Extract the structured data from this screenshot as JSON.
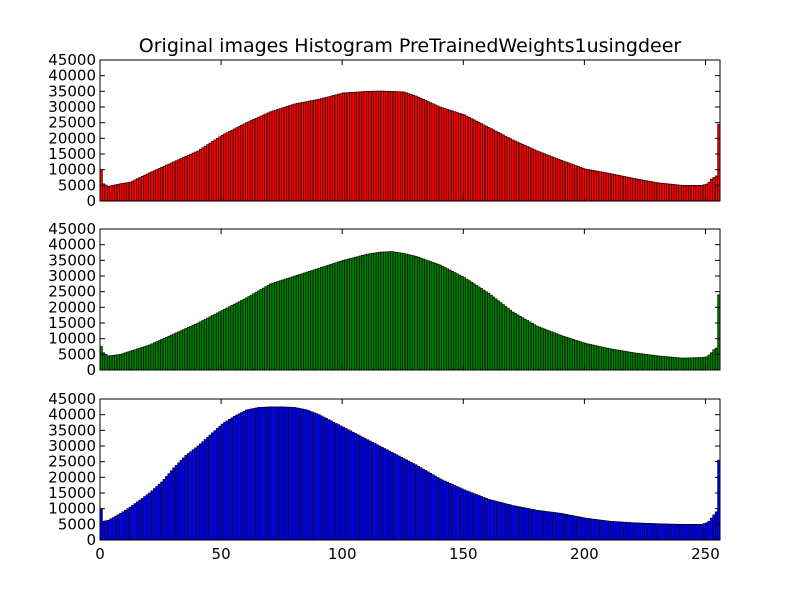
{
  "chart_data": {
    "type": "bar",
    "title": "Original images Histogram PreTrainedWeights1usingdeer",
    "layout": "3 stacked subplots sharing the x axis",
    "xlim": [
      0,
      256
    ],
    "ylim": [
      0,
      45000
    ],
    "xticks": [
      0,
      50,
      100,
      150,
      200,
      250
    ],
    "yticks": [
      0,
      5000,
      10000,
      15000,
      20000,
      25000,
      30000,
      35000,
      40000,
      45000
    ],
    "bin_width": 1,
    "grid": false,
    "legend": "none",
    "series": [
      {
        "color": "#ff0000",
        "x": [
          0,
          1,
          3,
          8,
          12,
          20,
          30,
          40,
          50,
          60,
          70,
          80,
          90,
          100,
          110,
          115,
          120,
          125,
          130,
          140,
          150,
          160,
          170,
          180,
          190,
          200,
          210,
          220,
          230,
          240,
          248,
          250,
          251,
          252,
          253,
          254,
          255
        ],
        "values": [
          10000,
          5500,
          4700,
          5500,
          6000,
          9000,
          12500,
          16000,
          21000,
          25000,
          28500,
          31000,
          32500,
          34500,
          35000,
          35100,
          35000,
          34800,
          33500,
          30000,
          27500,
          23500,
          19500,
          16000,
          13000,
          10200,
          8800,
          7200,
          5800,
          5000,
          5000,
          5400,
          6000,
          7000,
          7500,
          8000,
          24500
        ]
      },
      {
        "color": "#008000",
        "x": [
          0,
          1,
          3,
          8,
          12,
          20,
          30,
          40,
          50,
          60,
          70,
          80,
          90,
          100,
          110,
          115,
          120,
          125,
          130,
          140,
          150,
          160,
          170,
          180,
          190,
          200,
          210,
          220,
          230,
          240,
          248,
          250,
          251,
          252,
          253,
          254,
          255
        ],
        "values": [
          7500,
          5500,
          4500,
          5000,
          6000,
          8000,
          11500,
          15000,
          19000,
          23000,
          27500,
          30000,
          32500,
          35000,
          37000,
          37600,
          37800,
          37200,
          36300,
          33500,
          29500,
          24500,
          18500,
          14000,
          11000,
          8500,
          6800,
          5500,
          4500,
          3800,
          4000,
          4200,
          4800,
          5500,
          6500,
          7000,
          24000
        ]
      },
      {
        "color": "#0000ff",
        "x": [
          0,
          1,
          3,
          8,
          12,
          20,
          25,
          30,
          35,
          40,
          45,
          50,
          55,
          60,
          65,
          70,
          75,
          80,
          85,
          90,
          95,
          100,
          110,
          120,
          130,
          140,
          150,
          160,
          170,
          180,
          190,
          200,
          210,
          220,
          230,
          240,
          248,
          250,
          251,
          252,
          253,
          254,
          255
        ],
        "values": [
          10000,
          6000,
          6300,
          8500,
          10500,
          15000,
          18500,
          23000,
          27000,
          30000,
          33500,
          37000,
          39500,
          41500,
          42300,
          42500,
          42500,
          42300,
          41500,
          40000,
          38000,
          36000,
          32000,
          28000,
          24000,
          19500,
          16000,
          13000,
          11000,
          9500,
          8500,
          7000,
          6000,
          5500,
          5200,
          5000,
          5000,
          5500,
          6000,
          7000,
          8000,
          9000,
          25500
        ]
      }
    ]
  }
}
